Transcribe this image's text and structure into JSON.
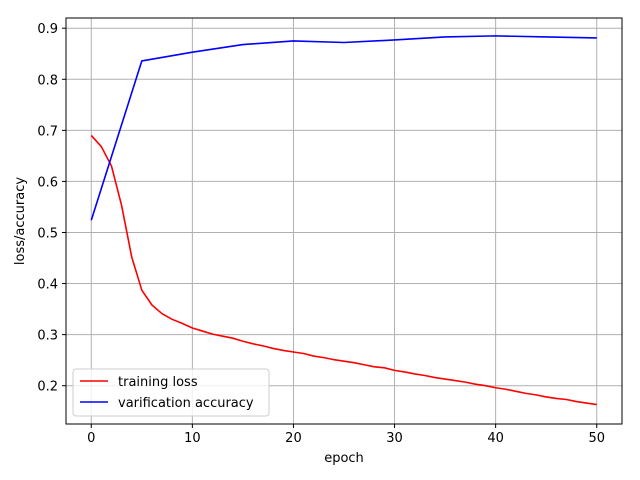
{
  "chart_data": {
    "type": "line",
    "title": "",
    "xlabel": "epoch",
    "ylabel": "loss/accuracy",
    "xlim": [
      -2.5,
      52.5
    ],
    "ylim": [
      0.125,
      0.92
    ],
    "xticks": [
      0,
      10,
      20,
      30,
      40,
      50
    ],
    "yticks": [
      0.2,
      0.3,
      0.4,
      0.5,
      0.6,
      0.7,
      0.8,
      0.9
    ],
    "grid": true,
    "legend_position": "lower-left",
    "series": [
      {
        "name": "training loss",
        "color": "#ff0000",
        "x": [
          0,
          1,
          2,
          3,
          4,
          5,
          6,
          7,
          8,
          9,
          10,
          11,
          12,
          13,
          14,
          15,
          16,
          17,
          18,
          19,
          20,
          21,
          22,
          23,
          24,
          25,
          26,
          27,
          28,
          29,
          30,
          31,
          32,
          33,
          34,
          35,
          36,
          37,
          38,
          39,
          40,
          41,
          42,
          43,
          44,
          45,
          46,
          47,
          48,
          49,
          50
        ],
        "y": [
          0.69,
          0.668,
          0.63,
          0.553,
          0.452,
          0.387,
          0.358,
          0.341,
          0.33,
          0.322,
          0.313,
          0.307,
          0.301,
          0.297,
          0.293,
          0.287,
          0.282,
          0.278,
          0.273,
          0.269,
          0.266,
          0.263,
          0.258,
          0.255,
          0.251,
          0.248,
          0.245,
          0.241,
          0.237,
          0.235,
          0.23,
          0.227,
          0.223,
          0.22,
          0.216,
          0.213,
          0.21,
          0.207,
          0.203,
          0.2,
          0.196,
          0.193,
          0.189,
          0.185,
          0.182,
          0.178,
          0.175,
          0.173,
          0.169,
          0.166,
          0.163
        ]
      },
      {
        "name": "varification accuracy",
        "color": "#0000ff",
        "x": [
          0,
          5,
          10,
          15,
          20,
          25,
          30,
          35,
          40,
          45,
          50
        ],
        "y": [
          0.524,
          0.836,
          0.853,
          0.868,
          0.875,
          0.872,
          0.877,
          0.883,
          0.885,
          0.883,
          0.881
        ]
      }
    ]
  }
}
